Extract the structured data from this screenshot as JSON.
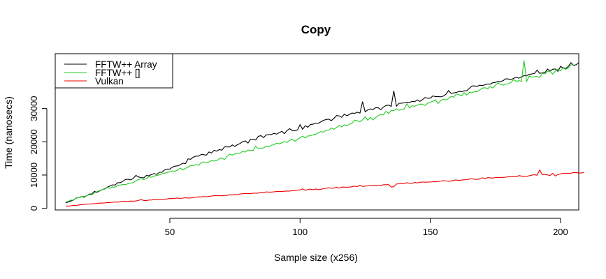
{
  "chart_data": {
    "type": "line",
    "title": "Copy",
    "xlabel": "Sample size (x256)",
    "ylabel": "Time (nanosecs)",
    "xlim": [
      6,
      207
    ],
    "ylim": [
      -500,
      46500
    ],
    "x_ticks": [
      50,
      100,
      150,
      200
    ],
    "y_ticks": [
      0,
      10000,
      20000,
      30000
    ],
    "legend_position": "top-left",
    "grid": false,
    "x_start": 10,
    "x_step": 1,
    "series": [
      {
        "name": "FFTW++ Array",
        "color": "#000000",
        "values": [
          1620,
          1890,
          2180,
          2470,
          3070,
          3190,
          3470,
          3470,
          3710,
          4270,
          4290,
          5080,
          4780,
          5210,
          5580,
          5880,
          6330,
          6680,
          7060,
          6990,
          7710,
          7710,
          8140,
          8660,
          8730,
          8550,
          9040,
          9880,
          9400,
          9250,
          9160,
          9870,
          9790,
          10190,
          10460,
          10200,
          10820,
          10850,
          11540,
          11800,
          11800,
          12390,
          12670,
          12770,
          13120,
          13550,
          13430,
          14850,
          14760,
          15370,
          15670,
          15700,
          16190,
          16130,
          15980,
          16930,
          16630,
          17430,
          17190,
          17640,
          17490,
          18460,
          18460,
          18450,
          19060,
          18640,
          19140,
          19510,
          20040,
          20270,
          19630,
          20780,
          20770,
          20550,
          21660,
          21840,
          21250,
          22070,
          22140,
          22210,
          22510,
          22310,
          22770,
          23150,
          22440,
          23380,
          23930,
          23380,
          23300,
          23570,
          25150,
          23780,
          24840,
          24390,
          25220,
          25280,
          25620,
          25570,
          26020,
          26460,
          26700,
          26820,
          26380,
          27040,
          27880,
          27810,
          27370,
          28300,
          27830,
          28260,
          28650,
          28570,
          28900,
          28630,
          32110,
          29020,
          29610,
          29900,
          29720,
          30260,
          30250,
          29650,
          30440,
          30900,
          31050,
          30660,
          35360,
          30690,
          31590,
          31620,
          31710,
          31900,
          31840,
          32140,
          32060,
          32580,
          32160,
          32690,
          33310,
          33110,
          33110,
          33800,
          33580,
          33610,
          33530,
          33740,
          34300,
          35390,
          34570,
          34700,
          34860,
          35120,
          35090,
          35330,
          35340,
          36100,
          36790,
          36800,
          36680,
          37030,
          36880,
          37170,
          37390,
          37360,
          37740,
          37860,
          38170,
          38110,
          38430,
          38960,
          38890,
          38710,
          39070,
          39420,
          39110,
          39560,
          39880,
          39920,
          40240,
          40410,
          40550,
          41570,
          40610,
          40700,
          40790,
          41880,
          41300,
          41830,
          41930,
          41170,
          42670,
          42260,
          42080,
          42660,
          43800,
          43040,
          43160,
          43820
        ]
      },
      {
        "name": "FFTW++ []",
        "color": "#22cc22",
        "values": [
          1840,
          2110,
          2450,
          2500,
          2990,
          3220,
          3580,
          3240,
          3810,
          4110,
          4080,
          4570,
          5020,
          5310,
          5580,
          5750,
          6320,
          5940,
          6440,
          6340,
          6810,
          6970,
          7170,
          7090,
          7440,
          7570,
          7730,
          8260,
          8660,
          8860,
          8650,
          8960,
          9470,
          9370,
          9690,
          9870,
          10050,
          10400,
          10550,
          10760,
          11010,
          11240,
          11140,
          11510,
          12080,
          11500,
          12000,
          12410,
          12900,
          12830,
          13130,
          12930,
          13700,
          13950,
          13750,
          13940,
          14320,
          14250,
          14290,
          14920,
          15140,
          14680,
          15660,
          16280,
          16000,
          16380,
          16540,
          16540,
          17140,
          16890,
          17520,
          17430,
          17410,
          18690,
          17880,
          18100,
          18130,
          18700,
          18430,
          18990,
          19120,
          19580,
          19400,
          19690,
          20050,
          19840,
          20450,
          20760,
          20150,
          20730,
          21260,
          21720,
          21140,
          21790,
          21810,
          22070,
          22250,
          22750,
          23070,
          22910,
          23460,
          23530,
          24150,
          23780,
          24320,
          24890,
          24460,
          25110,
          24830,
          25370,
          25630,
          26520,
          26310,
          26020,
          26600,
          27500,
          26480,
          27360,
          26580,
          27280,
          27800,
          28270,
          28150,
          29170,
          28540,
          29450,
          29390,
          29940,
          29470,
          29700,
          29900,
          31440,
          30200,
          30820,
          30700,
          31020,
          31350,
          31310,
          30930,
          31620,
          31930,
          32220,
          32610,
          31490,
          32430,
          32790,
          32570,
          33000,
          33590,
          33460,
          34400,
          34210,
          33800,
          34790,
          34050,
          34870,
          34740,
          35090,
          35070,
          35620,
          36130,
          36290,
          35950,
          36620,
          36170,
          37010,
          37710,
          37320,
          37030,
          37370,
          37470,
          37850,
          38720,
          38210,
          38390,
          38180,
          44460,
          38140,
          39810,
          39440,
          39570,
          39690,
          39350,
          40580,
          40440,
          41260,
          41140,
          40360,
          41250,
          41870,
          41380,
          42210,
          41790,
          42160,
          43150,
          43170
        ]
      },
      {
        "name": "Vulkan",
        "color": "#ee0000",
        "values": [
          680,
          670,
          750,
          890,
          860,
          1000,
          1100,
          1160,
          1270,
          1280,
          1330,
          1390,
          1450,
          1560,
          1560,
          1620,
          1740,
          1710,
          1810,
          1900,
          1850,
          1950,
          2110,
          2080,
          2100,
          2160,
          2140,
          2230,
          2350,
          2680,
          2330,
          2330,
          2470,
          2500,
          2660,
          2610,
          2590,
          2580,
          2640,
          2810,
          2950,
          2930,
          3000,
          3080,
          2970,
          3060,
          3170,
          3090,
          3100,
          3240,
          3270,
          3440,
          3420,
          3530,
          3480,
          3600,
          3690,
          3770,
          3800,
          3760,
          3820,
          3860,
          3860,
          4080,
          3990,
          4130,
          4090,
          4300,
          4380,
          4450,
          4440,
          4440,
          4550,
          4530,
          4550,
          4860,
          4690,
          4940,
          4870,
          4870,
          4950,
          5030,
          5080,
          5040,
          5120,
          5190,
          5180,
          5310,
          5330,
          5450,
          5530,
          5850,
          5420,
          5620,
          5780,
          5590,
          5790,
          5620,
          5710,
          5910,
          6010,
          6150,
          6040,
          6060,
          6360,
          6060,
          6380,
          6360,
          6350,
          6380,
          6480,
          6670,
          6510,
          6930,
          6580,
          6680,
          6760,
          6810,
          6930,
          6880,
          6800,
          6910,
          7080,
          7100,
          7120,
          6380,
          6480,
          7310,
          7360,
          7490,
          7440,
          7690,
          7540,
          7480,
          7770,
          7650,
          7840,
          7900,
          7850,
          7880,
          7890,
          8020,
          7970,
          8030,
          8200,
          8300,
          8200,
          8110,
          8230,
          8440,
          8500,
          8350,
          8500,
          8560,
          8630,
          8780,
          8890,
          8720,
          8710,
          8800,
          9190,
          8880,
          9210,
          9170,
          9090,
          9250,
          9270,
          9250,
          9290,
          9360,
          9490,
          9520,
          9550,
          9440,
          9840,
          9690,
          9560,
          9600,
          9810,
          9960,
          10110,
          9950,
          11570,
          10120,
          10190,
          10040,
          9890,
          10510,
          9720,
          10180,
          10340,
          10510,
          10450,
          10510,
          10550,
          10750,
          10770,
          10600,
          10640,
          10760
        ]
      }
    ]
  }
}
